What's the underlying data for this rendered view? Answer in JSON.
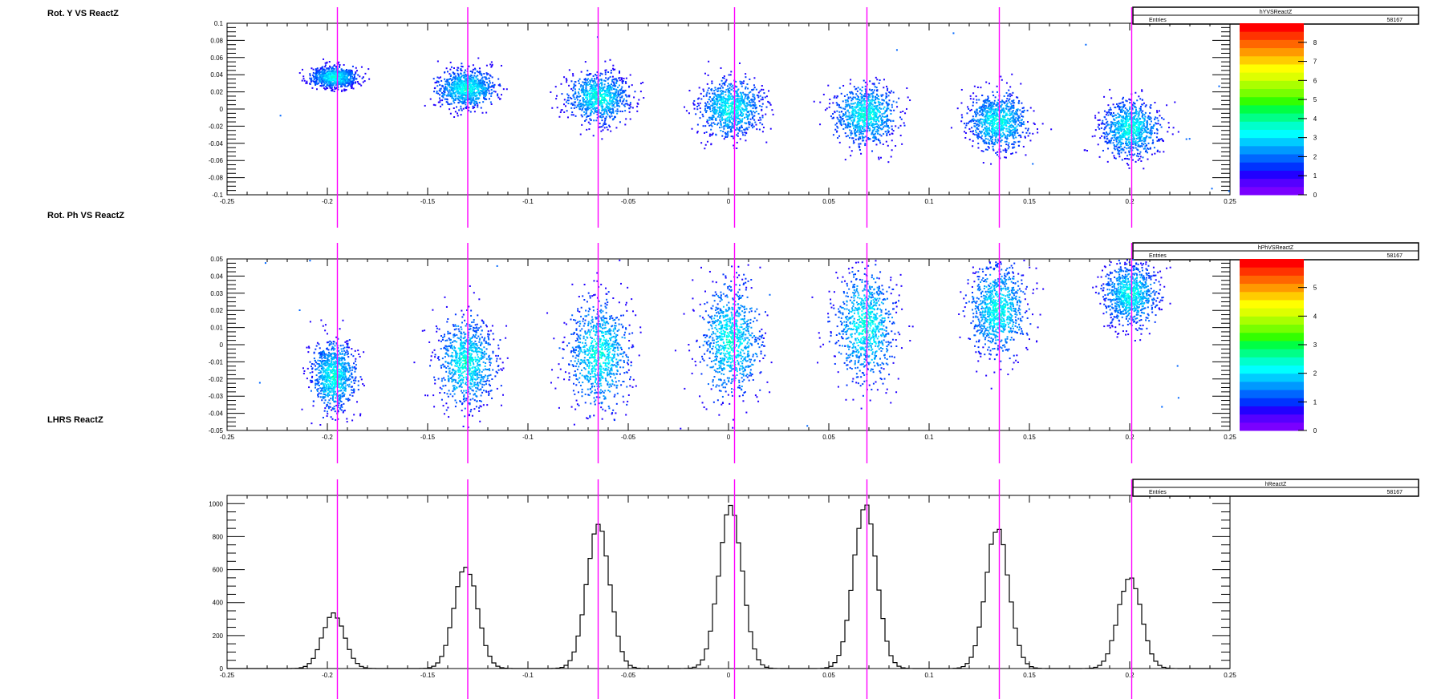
{
  "page": {
    "background": "#ffffff"
  },
  "palette": [
    "#7a00ff",
    "#5500ff",
    "#2200ff",
    "#0033ff",
    "#0066ff",
    "#0099ff",
    "#00ccff",
    "#00ffff",
    "#00ffcc",
    "#00ff88",
    "#00ff44",
    "#33ff00",
    "#77ff00",
    "#aaff00",
    "#ddff00",
    "#ffff00",
    "#ffcc00",
    "#ff9900",
    "#ff6600",
    "#ff3300",
    "#ff0000"
  ],
  "marker_color": "#ff00ff",
  "marker_x": [
    -0.195,
    -0.13,
    -0.065,
    0.003,
    0.069,
    0.135,
    0.201
  ],
  "peak_centers": [
    -0.197,
    -0.131,
    -0.065,
    0.001,
    0.068,
    0.134,
    0.2
  ],
  "panels": [
    {
      "title": "Rot. Y VS ReactZ",
      "stats": {
        "name": "hYVSReactZ",
        "entries_label": "Entries",
        "entries_value": "58167"
      },
      "chart_data": {
        "type": "heatmap",
        "xlim": [
          -0.25,
          0.25
        ],
        "ylim": [
          -0.1,
          0.1
        ],
        "x_tick_labels": [
          "-0.25",
          "-0.2",
          "-0.15",
          "-0.1",
          "-0.05",
          "0",
          "0.05",
          "0.1",
          "0.15",
          "0.2",
          "0.25"
        ],
        "y_tick_labels": [
          "-0.1",
          "-0.08",
          "-0.06",
          "-0.04",
          "-0.02",
          "0",
          "0.02",
          "0.04",
          "0.06",
          "0.08",
          "0.1"
        ],
        "z_range": [
          0,
          9
        ],
        "z_tick_labels": [
          "0",
          "1",
          "2",
          "3",
          "4",
          "5",
          "6",
          "7",
          "8"
        ],
        "clusters": [
          {
            "x": -0.197,
            "y": 0.038,
            "sx": 0.0055,
            "sy": 0.006
          },
          {
            "x": -0.131,
            "y": 0.025,
            "sx": 0.007,
            "sy": 0.011
          },
          {
            "x": -0.065,
            "y": 0.014,
            "sx": 0.0075,
            "sy": 0.014
          },
          {
            "x": 0.001,
            "y": 0.002,
            "sx": 0.0075,
            "sy": 0.016
          },
          {
            "x": 0.068,
            "y": -0.006,
            "sx": 0.0075,
            "sy": 0.017
          },
          {
            "x": 0.134,
            "y": -0.014,
            "sx": 0.007,
            "sy": 0.016
          },
          {
            "x": 0.2,
            "y": -0.022,
            "sx": 0.007,
            "sy": 0.016
          }
        ]
      }
    },
    {
      "title": "Rot. Ph VS ReactZ",
      "stats": {
        "name": "hPhVSReactZ",
        "entries_label": "Entries",
        "entries_value": "58167"
      },
      "chart_data": {
        "type": "heatmap",
        "xlim": [
          -0.25,
          0.25
        ],
        "ylim": [
          -0.05,
          0.05
        ],
        "x_tick_labels": [
          "-0.25",
          "-0.2",
          "-0.15",
          "-0.1",
          "-0.05",
          "0",
          "0.05",
          "0.1",
          "0.15",
          "0.2",
          "0.25"
        ],
        "y_tick_labels": [
          "-0.05",
          "-0.04",
          "-0.03",
          "-0.02",
          "-0.01",
          "0",
          "0.01",
          "0.02",
          "0.03",
          "0.04",
          "0.05"
        ],
        "z_range": [
          0,
          6
        ],
        "z_tick_labels": [
          "0",
          "1",
          "2",
          "3",
          "4",
          "5"
        ],
        "clusters": [
          {
            "x": -0.197,
            "y": -0.018,
            "sx": 0.0055,
            "sy": 0.01
          },
          {
            "x": -0.131,
            "y": -0.01,
            "sx": 0.007,
            "sy": 0.013
          },
          {
            "x": -0.065,
            "y": -0.005,
            "sx": 0.0075,
            "sy": 0.016
          },
          {
            "x": 0.001,
            "y": 0.003,
            "sx": 0.0075,
            "sy": 0.017
          },
          {
            "x": 0.068,
            "y": 0.012,
            "sx": 0.0075,
            "sy": 0.016
          },
          {
            "x": 0.134,
            "y": 0.021,
            "sx": 0.007,
            "sy": 0.013
          },
          {
            "x": 0.2,
            "y": 0.03,
            "sx": 0.0065,
            "sy": 0.009
          }
        ]
      }
    },
    {
      "title": "LHRS ReactZ",
      "stats": {
        "name": "hReactZ",
        "entries_label": "Entries",
        "entries_value": "58167"
      },
      "chart_data": {
        "type": "histogram",
        "xlim": [
          -0.25,
          0.25
        ],
        "ylim": [
          0,
          1050
        ],
        "bin_width": 0.002,
        "x_tick_labels": [
          "-0.25",
          "-0.2",
          "-0.15",
          "-0.1",
          "-0.05",
          "0",
          "0.05",
          "0.1",
          "0.15",
          "0.2",
          "0.25"
        ],
        "y_ticks": [
          0,
          200,
          400,
          600,
          800,
          1000
        ],
        "y_tick_labels": [
          "0",
          "200",
          "400",
          "600",
          "800",
          "1000"
        ],
        "peaks": [
          {
            "x": -0.197,
            "height": 330,
            "sigma": 0.0055
          },
          {
            "x": -0.131,
            "height": 625,
            "sigma": 0.0058
          },
          {
            "x": -0.065,
            "height": 865,
            "sigma": 0.0058
          },
          {
            "x": 0.001,
            "height": 985,
            "sigma": 0.0058
          },
          {
            "x": 0.068,
            "height": 990,
            "sigma": 0.0058
          },
          {
            "x": 0.134,
            "height": 840,
            "sigma": 0.0058
          },
          {
            "x": 0.2,
            "height": 550,
            "sigma": 0.0058
          }
        ]
      }
    }
  ]
}
